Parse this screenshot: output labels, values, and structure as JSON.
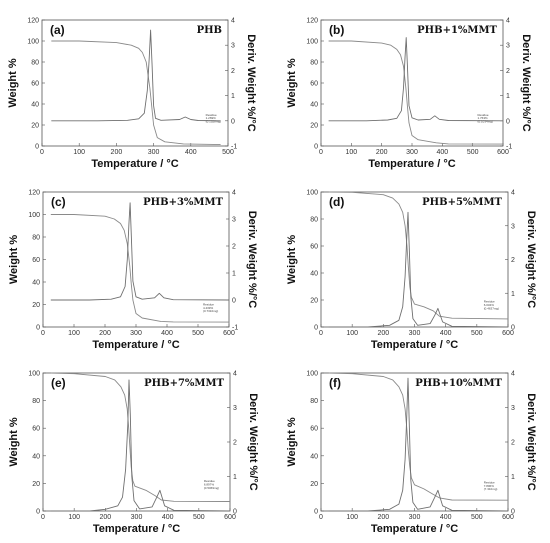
{
  "chart_data": [
    {
      "type": "line",
      "panel_label": "(a)",
      "sample": "PHB",
      "xlabel": "Temperature / °C",
      "ylabel": "Weight %",
      "ylabel_right": "Deriv. Weight %/°C",
      "xlim": [
        0,
        500
      ],
      "xticks": [
        0,
        100,
        200,
        300,
        400,
        500
      ],
      "ylim": [
        0,
        120
      ],
      "yticks": [
        0,
        20,
        40,
        60,
        80,
        100,
        120
      ],
      "y2lim": [
        -1,
        4
      ],
      "y2ticks": [
        -1,
        0,
        1,
        2,
        3,
        4
      ],
      "residue_note": [
        "Residue",
        "1.269%",
        "(0.1028mg)"
      ],
      "series": [
        {
          "axis": "left",
          "x": [
            25,
            100,
            200,
            240,
            260,
            270,
            280,
            290,
            295,
            300,
            310,
            330,
            380,
            480
          ],
          "values": [
            100,
            100,
            98.5,
            96,
            93,
            89,
            80,
            55,
            38,
            20,
            8,
            4,
            2,
            1.3
          ]
        },
        {
          "axis": "right",
          "x": [
            25,
            150,
            230,
            260,
            275,
            283,
            288,
            292,
            296,
            300,
            305,
            320,
            370,
            385,
            400,
            420,
            480
          ],
          "values": [
            0,
            0,
            0.02,
            0.08,
            0.3,
            1.2,
            2.4,
            3.6,
            2.2,
            0.6,
            0.1,
            0.02,
            0.05,
            0.15,
            0.05,
            0.01,
            0
          ]
        }
      ]
    },
    {
      "type": "line",
      "panel_label": "(b)",
      "sample": "PHB+1%MMT",
      "xlabel": "Temperature / °C",
      "ylabel": "Weight %",
      "ylabel_right": "Deriv. Weight %/°C",
      "xlim": [
        0,
        600
      ],
      "xticks": [
        0,
        100,
        200,
        300,
        400,
        500,
        600
      ],
      "ylim": [
        0,
        120
      ],
      "yticks": [
        0,
        20,
        40,
        60,
        80,
        100,
        120
      ],
      "y2lim": [
        -1,
        4
      ],
      "y2ticks": [
        -1,
        0,
        1,
        2,
        3,
        4
      ],
      "residue_note": [
        "Residue",
        "1.763%",
        "(0.1034mg)"
      ],
      "series": [
        {
          "axis": "left",
          "x": [
            25,
            100,
            200,
            230,
            250,
            262,
            272,
            280,
            285,
            290,
            300,
            320,
            380,
            420,
            600
          ],
          "values": [
            100,
            100,
            98,
            96,
            92,
            87,
            76,
            55,
            38,
            22,
            10,
            6,
            3,
            2,
            1.8
          ]
        },
        {
          "axis": "right",
          "x": [
            25,
            150,
            220,
            250,
            265,
            272,
            277,
            281,
            285,
            290,
            300,
            320,
            360,
            375,
            390,
            420,
            600
          ],
          "values": [
            0,
            0,
            0.03,
            0.1,
            0.4,
            1.3,
            2.5,
            3.3,
            2.2,
            0.6,
            0.12,
            0.03,
            0.06,
            0.2,
            0.06,
            0.01,
            0
          ]
        }
      ]
    },
    {
      "type": "line",
      "panel_label": "(c)",
      "sample": "PHB+3%MMT",
      "xlabel": "Temperature / °C",
      "ylabel": "Weight %",
      "ylabel_right": "Deriv. Weight %/°C",
      "xlim": [
        0,
        600
      ],
      "xticks": [
        0,
        100,
        200,
        300,
        400,
        500,
        600
      ],
      "ylim": [
        0,
        120
      ],
      "yticks": [
        0,
        20,
        40,
        60,
        80,
        100,
        120
      ],
      "y2lim": [
        -1,
        4
      ],
      "y2ticks": [
        -1,
        0,
        1,
        2,
        3,
        4
      ],
      "residue_note": [
        "Residue",
        "4.439%",
        "(0.7310mg)"
      ],
      "series": [
        {
          "axis": "left",
          "x": [
            25,
            100,
            200,
            230,
            250,
            262,
            272,
            280,
            285,
            290,
            300,
            320,
            380,
            420,
            600
          ],
          "values": [
            100,
            100,
            98.5,
            96,
            92,
            86,
            74,
            54,
            38,
            24,
            12,
            8,
            5,
            4.5,
            4.4
          ]
        },
        {
          "axis": "right",
          "x": [
            25,
            150,
            220,
            250,
            265,
            272,
            277,
            281,
            285,
            290,
            300,
            320,
            360,
            375,
            390,
            420,
            600
          ],
          "values": [
            0,
            0,
            0.03,
            0.12,
            0.5,
            1.5,
            2.8,
            3.6,
            2.4,
            0.7,
            0.12,
            0.03,
            0.08,
            0.25,
            0.08,
            0.01,
            0
          ]
        }
      ]
    },
    {
      "type": "line",
      "panel_label": "(d)",
      "sample": "PHB+5%MMT",
      "xlabel": "Temperature / °C",
      "ylabel": "Weight %",
      "ylabel_right": "Deriv. Weight %/°C",
      "xlim": [
        0,
        600
      ],
      "xticks": [
        0,
        100,
        200,
        300,
        400,
        500,
        600
      ],
      "ylim": [
        0,
        100
      ],
      "yticks": [
        0,
        20,
        40,
        60,
        80,
        100
      ],
      "y2lim": [
        0,
        4
      ],
      "y2ticks": [
        0,
        1,
        2,
        3,
        4
      ],
      "residue_note": [
        "Residue",
        "6.034%",
        "(0.4637mg)"
      ],
      "series": [
        {
          "axis": "left",
          "x": [
            25,
            100,
            200,
            230,
            250,
            262,
            270,
            276,
            280,
            285,
            290,
            300,
            330,
            360,
            380,
            420,
            600
          ],
          "values": [
            100,
            99.8,
            98,
            95.5,
            91,
            85,
            75,
            60,
            45,
            30,
            22,
            17,
            15,
            12,
            8,
            6.5,
            6
          ]
        },
        {
          "axis": "right",
          "x": [
            25,
            150,
            220,
            250,
            262,
            270,
            275,
            279,
            283,
            288,
            295,
            310,
            350,
            365,
            375,
            390,
            420,
            600
          ],
          "values": [
            0,
            0,
            0.05,
            0.2,
            0.6,
            1.5,
            2.6,
            3.4,
            2.4,
            0.9,
            0.25,
            0.05,
            0.1,
            0.35,
            0.55,
            0.15,
            0.02,
            0
          ]
        }
      ]
    },
    {
      "type": "line",
      "panel_label": "(e)",
      "sample": "PHB+7%MMT",
      "xlabel": "Temperature / °C",
      "ylabel": "Weight %",
      "ylabel_right": "Deriv. Weight %/°C",
      "xlim": [
        0,
        600
      ],
      "xticks": [
        0,
        100,
        200,
        300,
        400,
        500,
        600
      ],
      "ylim": [
        0,
        100
      ],
      "yticks": [
        0,
        20,
        40,
        60,
        80,
        100
      ],
      "y2lim": [
        0,
        4
      ],
      "y2ticks": [
        0,
        1,
        2,
        3,
        4
      ],
      "residue_note": [
        "Residue",
        "6.897%",
        "(0.5069mg)"
      ],
      "series": [
        {
          "axis": "left",
          "x": [
            25,
            100,
            200,
            230,
            250,
            262,
            270,
            275,
            279,
            283,
            288,
            295,
            330,
            360,
            380,
            420,
            600
          ],
          "values": [
            100,
            99.5,
            97.5,
            95,
            90,
            84,
            74,
            60,
            45,
            32,
            22,
            18,
            15,
            11,
            8,
            7,
            6.9
          ]
        },
        {
          "axis": "right",
          "x": [
            25,
            150,
            200,
            240,
            255,
            265,
            272,
            276,
            280,
            285,
            292,
            310,
            350,
            365,
            375,
            390,
            420,
            600
          ],
          "values": [
            0,
            0,
            0.05,
            0.15,
            0.4,
            1.2,
            2.5,
            3.8,
            2.8,
            1.0,
            0.3,
            0.06,
            0.12,
            0.4,
            0.6,
            0.15,
            0.02,
            0
          ]
        }
      ]
    },
    {
      "type": "line",
      "panel_label": "(f)",
      "sample": "PHB+10%MMT",
      "xlabel": "Temperature / °C",
      "ylabel": "Weight %",
      "ylabel_right": "Deriv. Weight %/°C",
      "xlim": [
        0,
        600
      ],
      "xticks": [
        0,
        100,
        200,
        300,
        400,
        500,
        600
      ],
      "ylim": [
        0,
        100
      ],
      "yticks": [
        0,
        20,
        40,
        60,
        80,
        100
      ],
      "y2lim": [
        0,
        4
      ],
      "y2ticks": [
        0,
        1,
        2,
        3,
        4
      ],
      "residue_note": [
        "Residue",
        "7.806%",
        "(7.310mg)"
      ],
      "series": [
        {
          "axis": "left",
          "x": [
            25,
            100,
            200,
            230,
            250,
            262,
            270,
            276,
            280,
            285,
            290,
            300,
            330,
            360,
            380,
            420,
            600
          ],
          "values": [
            100,
            99.5,
            97.5,
            95,
            90,
            84,
            74,
            58,
            44,
            32,
            24,
            19,
            16,
            12,
            9.5,
            8,
            7.8
          ]
        },
        {
          "axis": "right",
          "x": [
            25,
            150,
            220,
            250,
            262,
            270,
            275,
            279,
            283,
            288,
            295,
            310,
            350,
            365,
            375,
            390,
            420,
            600
          ],
          "values": [
            0,
            0,
            0.05,
            0.2,
            0.6,
            1.5,
            2.7,
            3.85,
            2.6,
            0.9,
            0.25,
            0.05,
            0.12,
            0.4,
            0.6,
            0.15,
            0.02,
            0
          ]
        }
      ]
    }
  ]
}
